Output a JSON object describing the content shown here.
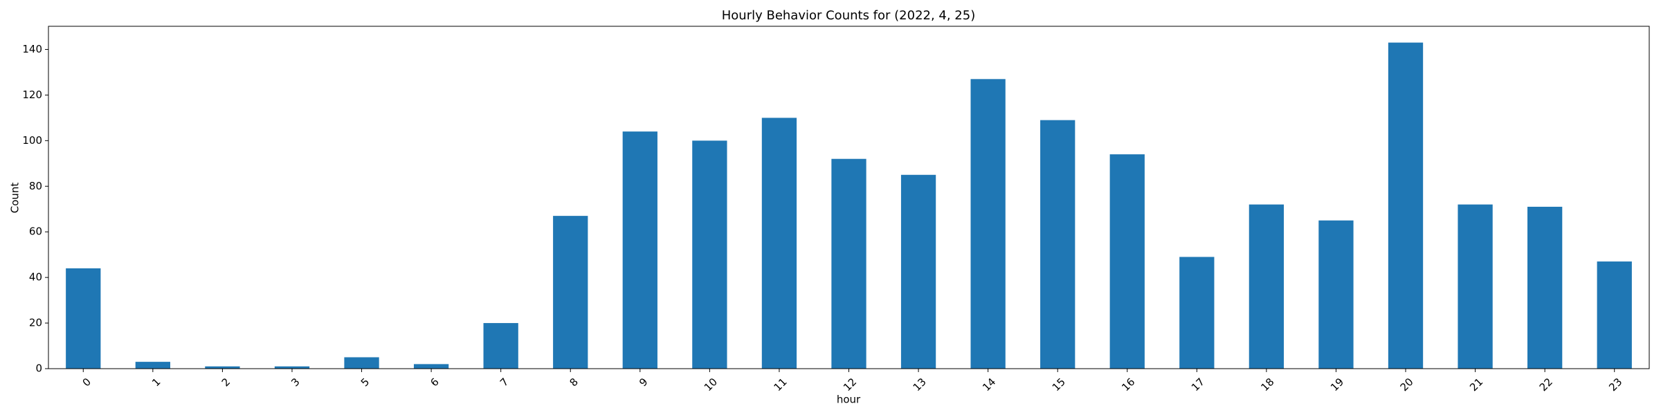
{
  "chart_data": {
    "type": "bar",
    "title": "Hourly Behavior Counts for (2022, 4, 25)",
    "x_label": "hour",
    "y_label": "Count",
    "categories": [
      "0",
      "1",
      "2",
      "3",
      "5",
      "6",
      "7",
      "8",
      "9",
      "10",
      "11",
      "12",
      "13",
      "14",
      "15",
      "16",
      "17",
      "18",
      "19",
      "20",
      "21",
      "22",
      "23"
    ],
    "values": [
      44,
      3,
      1,
      1,
      5,
      2,
      20,
      67,
      104,
      100,
      110,
      92,
      85,
      127,
      109,
      94,
      49,
      72,
      65,
      143,
      72,
      71,
      47
    ],
    "color": "#1f77b4",
    "ylim": [
      0,
      150.15
    ],
    "yticks": [
      0,
      20,
      40,
      60,
      80,
      100,
      120,
      140
    ],
    "grid": false
  }
}
